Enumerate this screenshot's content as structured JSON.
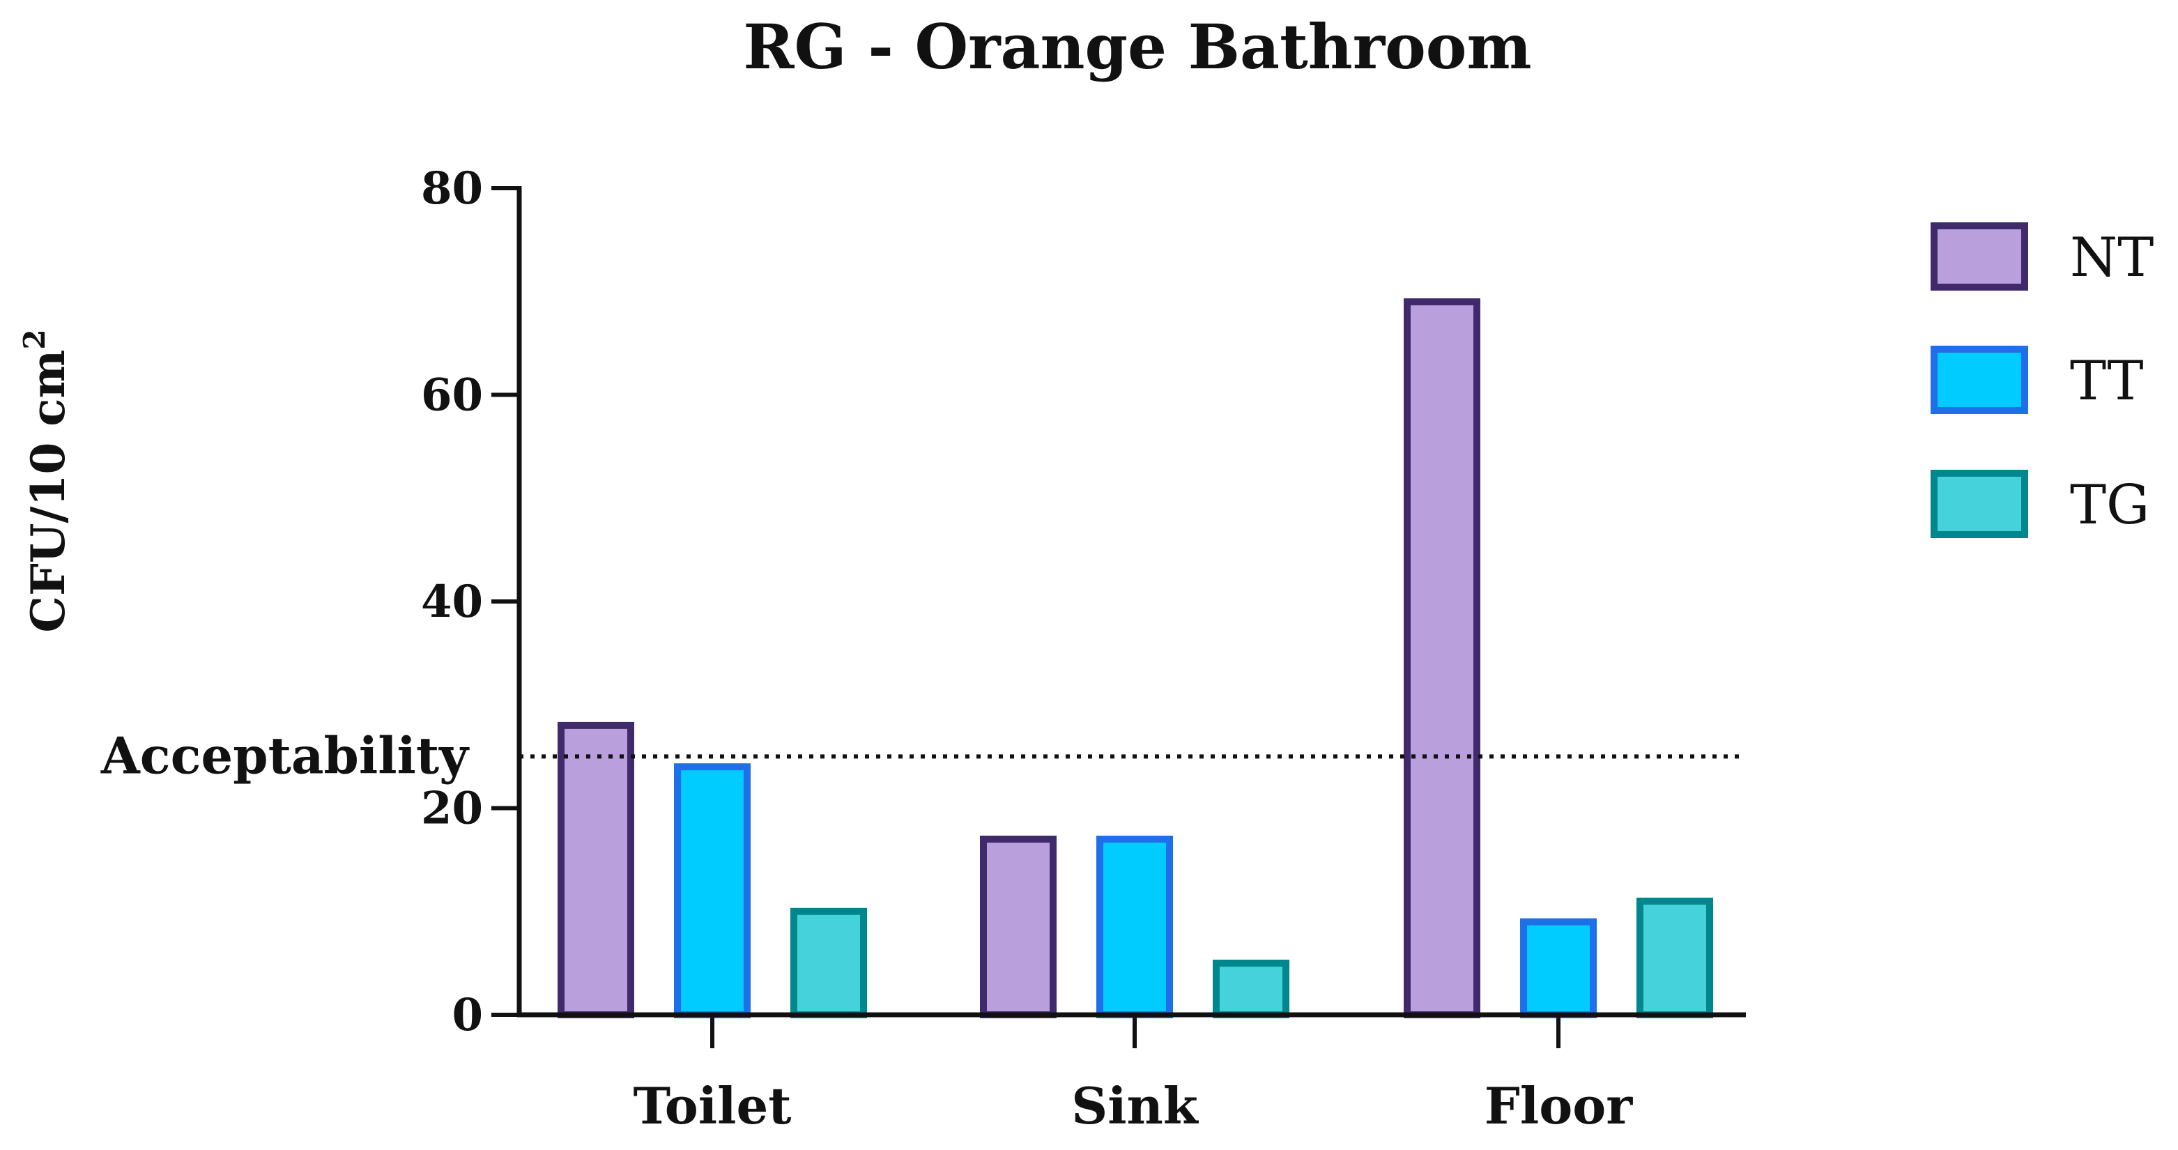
{
  "chart_data": {
    "type": "bar",
    "title": "RG - Orange Bathroom",
    "ylabel": "CFU/10 cm",
    "ylabel_sup": "2",
    "xlabel": "",
    "categories": [
      "Toilet",
      "Sink",
      "Floor"
    ],
    "ylim": [
      0,
      80
    ],
    "yticks": [
      0,
      20,
      40,
      60,
      80
    ],
    "series": [
      {
        "name": "NT",
        "values": [
          28,
          17,
          69
        ],
        "fill": "#B9A0DD",
        "stroke": "#3F2A6B"
      },
      {
        "name": "TT",
        "values": [
          24,
          17,
          9
        ],
        "fill": "#00CCFF",
        "stroke": "#1F6FEB"
      },
      {
        "name": "TG",
        "values": [
          10,
          5,
          11
        ],
        "fill": "#45D2DA",
        "stroke": "#00878E"
      }
    ],
    "reference_line": {
      "label": "Acceptability",
      "value": 25,
      "style": "dotted"
    },
    "legend": "right",
    "grid": false
  }
}
